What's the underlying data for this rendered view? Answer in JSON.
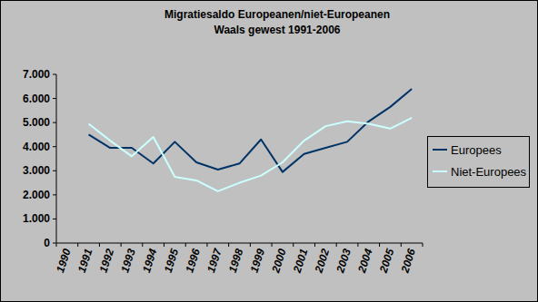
{
  "chart_data": {
    "type": "line",
    "title": "Migratiesaldo Europeanen/niet-Europeanen",
    "subtitle": "Waals gewest 1991-2006",
    "categories": [
      "1990",
      "1991",
      "1992",
      "1993",
      "1994",
      "1995",
      "1996",
      "1997",
      "1998",
      "1999",
      "2000",
      "2001",
      "2002",
      "2003",
      "2004",
      "2005",
      "2006"
    ],
    "series": [
      {
        "name": "Europees",
        "color": "#003366",
        "values": [
          null,
          4500,
          3950,
          3950,
          3300,
          4200,
          3350,
          3050,
          3300,
          4300,
          2950,
          3700,
          3950,
          4200,
          5050,
          5650,
          6400
        ]
      },
      {
        "name": "Niet-Europees",
        "color": "#ccffff",
        "values": [
          null,
          4950,
          4250,
          3600,
          4400,
          2750,
          2600,
          2150,
          2500,
          2800,
          3350,
          4250,
          4850,
          5050,
          4950,
          4750,
          5200
        ]
      }
    ],
    "ylim": [
      0,
      7000
    ],
    "yticks": [
      0,
      {
        "value": 1000,
        "label": "1.000"
      },
      {
        "value": 2000,
        "label": "2.000"
      },
      {
        "value": 3000,
        "label": "3.000"
      },
      {
        "value": 4000,
        "label": "4.000"
      },
      {
        "value": 5000,
        "label": "5.000"
      },
      {
        "value": 6000,
        "label": "6.000"
      },
      {
        "value": 7000,
        "label": "7.000"
      }
    ],
    "grid": false,
    "legend": "right"
  }
}
